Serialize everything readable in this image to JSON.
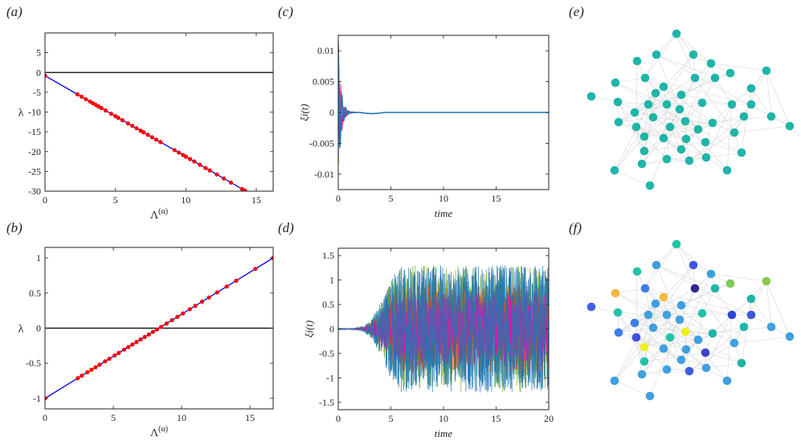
{
  "panels": {
    "a": {
      "label": "(a)"
    },
    "b": {
      "label": "(b)"
    },
    "c": {
      "label": "(c)"
    },
    "d": {
      "label": "(d)"
    },
    "e": {
      "label": "(e)"
    },
    "f": {
      "label": "(f)"
    }
  },
  "chart_data": [
    {
      "id": "a",
      "type": "scatter",
      "xlabel": "Λ(α)",
      "ylabel": "λ",
      "xlim": [
        0,
        16.2
      ],
      "ylim": [
        -30,
        10
      ],
      "xticks": [
        0,
        5,
        10,
        15
      ],
      "yticks": [
        5,
        0,
        -5,
        -10,
        -15,
        -20,
        -25,
        -30
      ],
      "zero_line": true,
      "line_color": "#0000ee",
      "point_color": "#ff0000",
      "line": {
        "x": [
          0,
          15
        ],
        "y": [
          -0.8,
          -31.5
        ]
      },
      "points_x": [
        0,
        2.3,
        2.6,
        2.9,
        3.2,
        3.4,
        3.6,
        3.8,
        4.0,
        4.3,
        4.7,
        5.0,
        5.2,
        5.5,
        5.9,
        6.2,
        6.5,
        6.8,
        7.0,
        7.3,
        7.6,
        7.9,
        8.2,
        9.2,
        9.5,
        9.8,
        10.0,
        10.3,
        10.6,
        11.0,
        11.4,
        11.7,
        12.2,
        12.7,
        13.2,
        14.0,
        14.2
      ]
    },
    {
      "id": "b",
      "type": "scatter",
      "xlabel": "Λ(α)",
      "ylabel": "λ",
      "xlim": [
        0,
        16.7
      ],
      "ylim": [
        -1.15,
        1.15
      ],
      "xticks": [
        0,
        5,
        10,
        15
      ],
      "yticks": [
        1,
        0.5,
        0,
        -0.5,
        -1
      ],
      "zero_line": true,
      "line_color": "#0000ee",
      "point_color": "#ff0000",
      "line": {
        "x": [
          0,
          16.7
        ],
        "y": [
          -1,
          1
        ]
      },
      "points_x": [
        0,
        2.4,
        2.7,
        3.1,
        3.4,
        3.7,
        4.0,
        4.4,
        4.7,
        5.1,
        5.4,
        5.8,
        6.1,
        6.4,
        6.7,
        7.0,
        7.3,
        7.6,
        7.9,
        8.2,
        8.5,
        8.9,
        9.3,
        9.7,
        10.1,
        10.6,
        11.0,
        11.5,
        12.0,
        12.6,
        13.3,
        14.0,
        15.4,
        16.7
      ]
    },
    {
      "id": "c",
      "type": "line",
      "xlabel": "time",
      "ylabel": "ξi(t)",
      "xlim": [
        0,
        20
      ],
      "ylim": [
        -0.0125,
        0.0125
      ],
      "xticks": [
        0,
        5,
        10,
        15
      ],
      "yticks": [
        0.01,
        0.005,
        0,
        -0.005,
        -0.01
      ],
      "ytick_labels": [
        "0.01",
        "0.005",
        "0",
        "-0.005",
        "-0.01"
      ],
      "main_color": "#1f77b4",
      "series_colors": [
        "#1f77b4",
        "#d95319",
        "#edb120",
        "#7e2f8e",
        "#77ac30",
        "#4dbeee",
        "#ff00aa"
      ]
    },
    {
      "id": "d",
      "type": "line",
      "xlabel": "time",
      "ylabel": "ξi(t)",
      "xlim": [
        0,
        20
      ],
      "ylim": [
        -1.65,
        1.65
      ],
      "xticks": [
        0,
        5,
        10,
        15,
        20
      ],
      "yticks": [
        1.5,
        1,
        0.5,
        0,
        -0.5,
        -1,
        -1.5
      ],
      "series_colors": [
        "#77ac30",
        "#1f77b4",
        "#d95319",
        "#ff00aa",
        "#1f77b4"
      ]
    }
  ],
  "networks": {
    "e": {
      "node_color": "#1fb5a8",
      "node_colors": [],
      "edge_color": "#d6d6d6"
    },
    "f": {
      "edge_color": "#d6d6d6",
      "node_colors": [
        "#21c4a8",
        "#21c4a8",
        "#3fa0e0",
        "#4055e8",
        "#3fa0e0",
        "#8cc84b",
        "#7fc85a",
        "#3d7ee8",
        "#f2b840",
        "#2e2a8c",
        "#1fb5a8",
        "#f2b840",
        "#1fb5a8",
        "#3fa0e0",
        "#4060ea",
        "#21c4a8",
        "#3fa0e0",
        "#3fa0e0",
        "#21c4a8",
        "#2a44d4",
        "#3d7ee8",
        "#3fa0e0",
        "#3b55e0",
        "#1fb5a8",
        "#3fa0e0",
        "#3fa0e0",
        "#f0f020",
        "#1fb5a8",
        "#3d7ee8",
        "#3fa0e0",
        "#3d50e0",
        "#21c4a8",
        "#3fa0e0",
        "#3fa0e0",
        "#f0f020",
        "#3fa0e0",
        "#3fa0e0",
        "#4040d0",
        "#21c4a8",
        "#1fb5a8",
        "#3d5ae0",
        "#3fa0e0",
        "#3fa0e0",
        "#3fa0e0",
        "#3fa0e0",
        "#3fa0e0",
        "#3fa0e0",
        "#3fa0e0",
        "#3fa0e0"
      ]
    }
  }
}
